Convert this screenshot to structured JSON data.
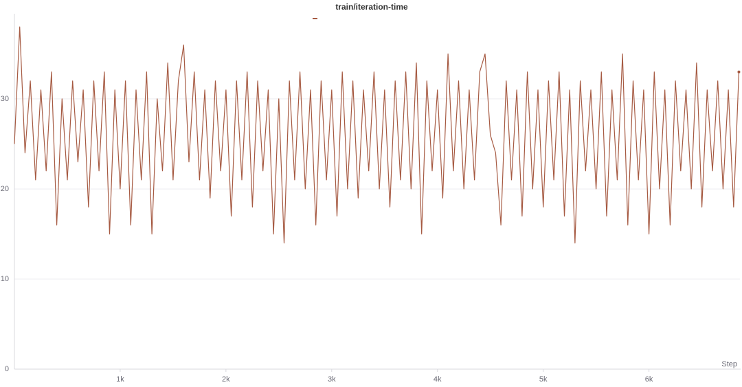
{
  "chart_data": {
    "type": "line",
    "title": "train/iteration-time",
    "x_label": "Step",
    "color": "#a65a42",
    "x": [
      0,
      50,
      100,
      150,
      200,
      250,
      300,
      350,
      400,
      450,
      500,
      550,
      600,
      650,
      700,
      750,
      800,
      850,
      900,
      950,
      1000,
      1050,
      1100,
      1150,
      1200,
      1250,
      1300,
      1350,
      1400,
      1450,
      1500,
      1550,
      1600,
      1650,
      1700,
      1750,
      1800,
      1850,
      1900,
      1950,
      2000,
      2050,
      2100,
      2150,
      2200,
      2250,
      2300,
      2350,
      2400,
      2450,
      2500,
      2550,
      2600,
      2650,
      2700,
      2750,
      2800,
      2850,
      2900,
      2950,
      3000,
      3050,
      3100,
      3150,
      3200,
      3250,
      3300,
      3350,
      3400,
      3450,
      3500,
      3550,
      3600,
      3650,
      3700,
      3750,
      3800,
      3850,
      3900,
      3950,
      4000,
      4050,
      4100,
      4150,
      4200,
      4250,
      4300,
      4350,
      4400,
      4450,
      4500,
      4550,
      4600,
      4650,
      4700,
      4750,
      4800,
      4850,
      4900,
      4950,
      5000,
      5050,
      5100,
      5150,
      5200,
      5250,
      5300,
      5350,
      5400,
      5450,
      5500,
      5550,
      5600,
      5650,
      5700,
      5750,
      5800,
      5850,
      5900,
      5950,
      6000,
      6050,
      6100,
      6150,
      6200,
      6250,
      6300,
      6350,
      6400,
      6450,
      6500,
      6550,
      6600,
      6650,
      6700,
      6750,
      6800,
      6850
    ],
    "values": [
      25,
      38,
      24,
      32,
      21,
      31,
      22,
      33,
      16,
      30,
      21,
      32,
      23,
      31,
      18,
      32,
      22,
      33,
      15,
      31,
      20,
      32,
      16,
      31,
      21,
      33,
      15,
      30,
      22,
      34,
      21,
      32,
      36,
      23,
      33,
      21,
      31,
      19,
      32,
      22,
      31,
      17,
      32,
      21,
      33,
      18,
      32,
      22,
      31,
      15,
      30,
      14,
      32,
      21,
      33,
      20,
      31,
      16,
      32,
      21,
      31,
      17,
      33,
      20,
      32,
      19,
      31,
      22,
      33,
      20,
      31,
      18,
      32,
      21,
      33,
      20,
      34,
      15,
      32,
      22,
      31,
      19,
      35,
      22,
      32,
      20,
      31,
      21,
      33,
      35,
      26,
      24,
      16,
      32,
      21,
      31,
      17,
      33,
      20,
      31,
      18,
      32,
      21,
      33,
      17,
      31,
      14,
      32,
      22,
      31,
      20,
      33,
      17,
      31,
      21,
      35,
      16,
      32,
      21,
      31,
      15,
      33,
      20,
      31,
      16,
      32,
      22,
      31,
      20,
      34,
      18,
      31,
      22,
      32,
      20,
      31,
      18,
      33
    ],
    "xlim": [
      0,
      6860
    ],
    "ylim": [
      0,
      39
    ],
    "xticks": [
      {
        "value": 1000,
        "label": "1k"
      },
      {
        "value": 2000,
        "label": "2k"
      },
      {
        "value": 3000,
        "label": "3k"
      },
      {
        "value": 4000,
        "label": "4k"
      },
      {
        "value": 5000,
        "label": "5k"
      },
      {
        "value": 6000,
        "label": "6k"
      }
    ],
    "yticks": [
      0,
      10,
      20,
      30
    ],
    "grid": true
  }
}
